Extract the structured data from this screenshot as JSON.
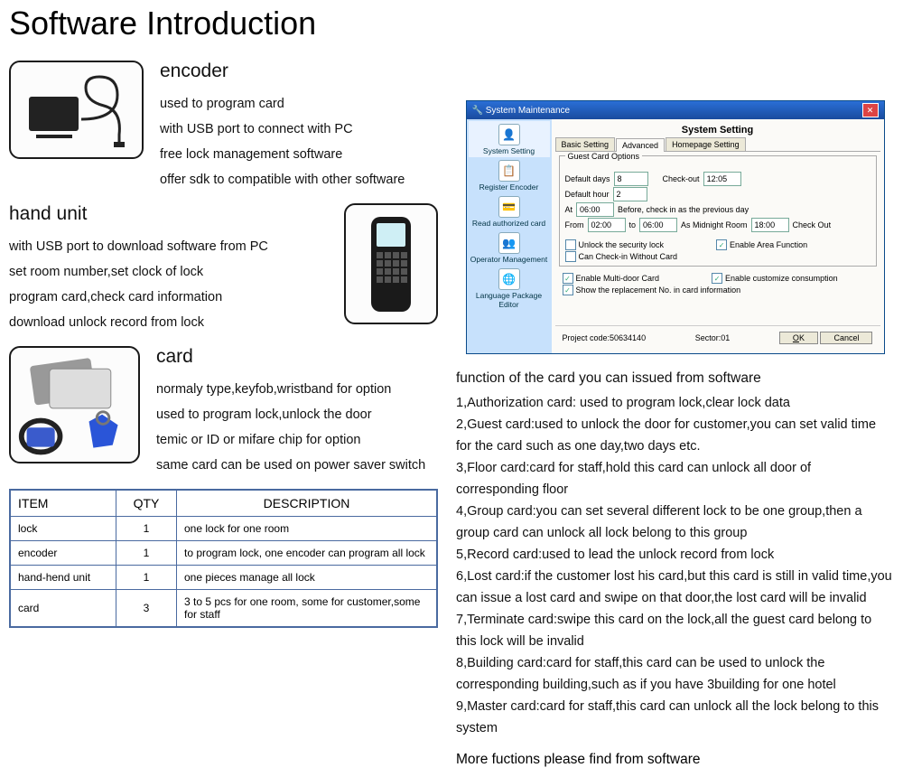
{
  "main_title": "Software Introduction",
  "encoder": {
    "title": "encoder",
    "lines": [
      "used to program card",
      "with USB port to connect with PC",
      "free lock management software",
      "offer sdk to compatible with other software"
    ]
  },
  "hand": {
    "title": "hand unit",
    "lines": [
      "with USB port to download software from PC",
      "set room number,set clock of lock",
      "program card,check card information",
      "download unlock record from lock"
    ]
  },
  "card": {
    "title": "card",
    "lines": [
      "normaly type,keyfob,wristband for option",
      "used to program lock,unlock the door",
      "temic or ID or mifare chip for option",
      "same card can be used on power saver switch"
    ]
  },
  "table": {
    "headers": [
      "ITEM",
      "QTY",
      "DESCRIPTION"
    ],
    "rows": [
      [
        "lock",
        "1",
        "one lock for one room"
      ],
      [
        "encoder",
        "1",
        "to program lock, one encoder can program all lock"
      ],
      [
        "hand-hend unit",
        "1",
        "one pieces manage all lock"
      ],
      [
        "card",
        "3",
        "3 to 5 pcs for one room, some for customer,some for staff"
      ]
    ]
  },
  "win": {
    "title": "System Maintenance",
    "main_title": "System Setting",
    "tabs": [
      "Basic Setting",
      "Advanced",
      "Homepage Setting"
    ],
    "active_tab": "Advanced",
    "side": [
      "System Setting",
      "Register Encoder",
      "Read authorized card",
      "Operator Management",
      "Language Package Editor"
    ],
    "side_icons": [
      "👤",
      "📋",
      "💳",
      "👥",
      "🌐"
    ],
    "group_title": "Guest Card Options",
    "default_days_label": "Default days",
    "default_days": "8",
    "checkout_label": "Check-out",
    "checkout": "12:05",
    "default_hour_label": "Default hour",
    "default_hour": "2",
    "at_label": "At",
    "at": "06:00",
    "before_label": "Before, check in as the previous day",
    "from_label": "From",
    "from": "02:00",
    "to_label": "to",
    "to": "06:00",
    "midnight_label": "As Midnight Room",
    "midnight": "18:00",
    "checkout2_label": "Check Out",
    "chk1": "Unlock the security lock",
    "chk2": "Enable Area Function",
    "chk3": "Can Check-in Without Card",
    "chk4": "Enable Multi-door Card",
    "chk5": "Enable customize consumption",
    "chk6": "Show the replacement No. in card information",
    "project_label": "Project code:50634140",
    "sector_label": "Sector:01",
    "ok": "OK",
    "cancel": "Cancel"
  },
  "func_title": "function of the card you can issued from software",
  "funcs": [
    "1,Authorization card: used to program lock,clear lock data",
    "2,Guest card:used to unlock the door for customer,you can set valid time for the card such as one day,two days etc.",
    "3,Floor card:card for staff,hold this card can unlock all door of corresponding floor",
    "4,Group card:you can set several different lock to be one group,then a group card can unlock all lock belong to this group",
    "5,Record card:used to lead the unlock record from lock",
    "6,Lost card:if the customer lost his card,but this card is still in valid time,you can issue a lost card and swipe on that door,the lost card will be invalid",
    "7,Terminate card:swipe this card on the lock,all the guest card belong to this lock will be invalid",
    "8,Building card:card for staff,this card can be used to unlock the corresponding building,such as if you have 3building for one hotel",
    "9,Master card:card for staff,this card can unlock all the lock belong to this system"
  ],
  "more": "More fuctions please find from software"
}
